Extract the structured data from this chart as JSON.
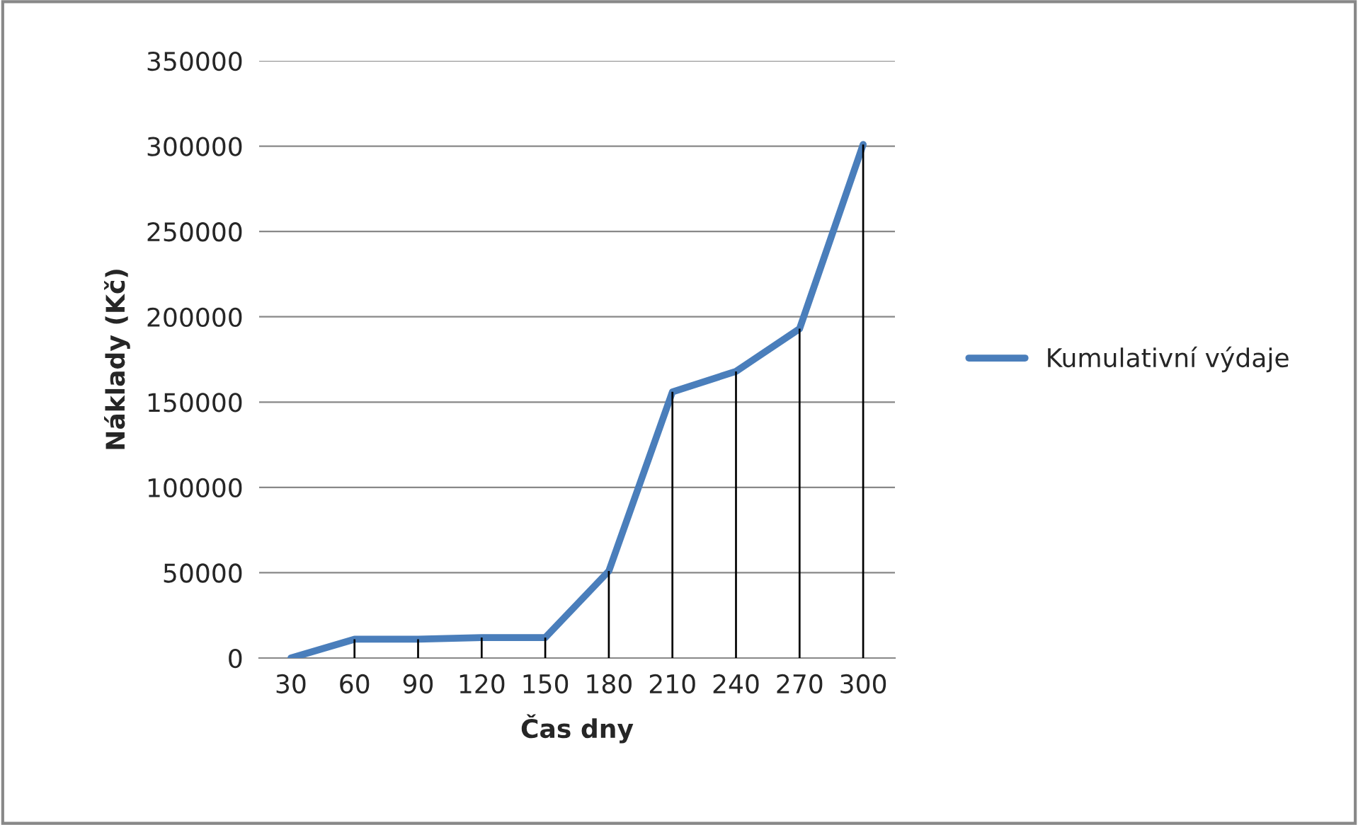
{
  "chart_data": {
    "type": "line",
    "xlabel": "Čas dny",
    "ylabel": "Náklady (Kč)",
    "categories": [
      "30",
      "60",
      "90",
      "120",
      "150",
      "180",
      "210",
      "240",
      "270",
      "300"
    ],
    "series": [
      {
        "type": "bar",
        "color": "#000000",
        "values": [
          0,
          11000,
          11000,
          12000,
          12000,
          51000,
          156000,
          168000,
          193000,
          301000
        ]
      },
      {
        "name": "Kumulativní výdaje",
        "color": "#4a7ebb",
        "values": [
          0,
          11000,
          11000,
          12000,
          12000,
          51000,
          156000,
          168000,
          193000,
          301000
        ]
      }
    ],
    "ylim": [
      0,
      350000
    ],
    "yticks": [
      0,
      50000,
      100000,
      150000,
      200000,
      250000,
      300000,
      350000
    ],
    "grid": "y",
    "legend": "right",
    "marker": "none",
    "line_style": "solid"
  }
}
